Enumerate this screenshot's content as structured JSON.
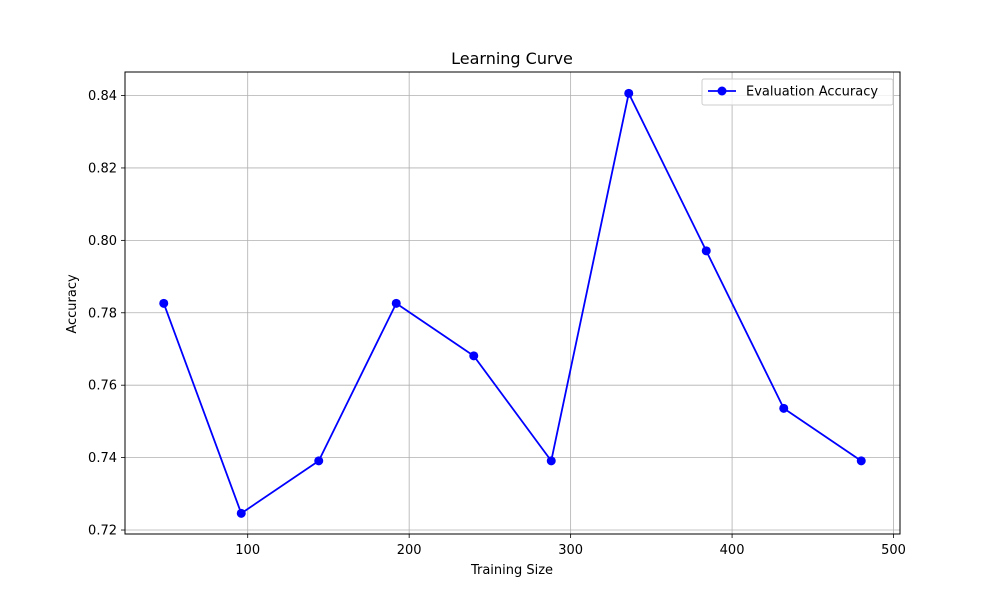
{
  "chart_data": {
    "type": "line",
    "title": "Learning Curve",
    "xlabel": "Training Size",
    "ylabel": "Accuracy",
    "xlim": [
      24,
      504
    ],
    "ylim": [
      0.7189,
      0.8465
    ],
    "xticks": [
      100,
      200,
      300,
      400,
      500
    ],
    "yticks": [
      0.72,
      0.74,
      0.76,
      0.78,
      0.8,
      0.82,
      0.84
    ],
    "ytick_labels": [
      "0.72",
      "0.74",
      "0.76",
      "0.78",
      "0.80",
      "0.82",
      "0.84"
    ],
    "grid": true,
    "legend_position": "top-right",
    "series": [
      {
        "name": "Evaluation Accuracy",
        "color": "#0000ff",
        "marker": "circle",
        "x": [
          48,
          96,
          144,
          192,
          240,
          288,
          336,
          384,
          432,
          480
        ],
        "y": [
          0.7826,
          0.7246,
          0.7391,
          0.7826,
          0.7681,
          0.7391,
          0.8406,
          0.7971,
          0.7536,
          0.7391
        ]
      }
    ]
  }
}
